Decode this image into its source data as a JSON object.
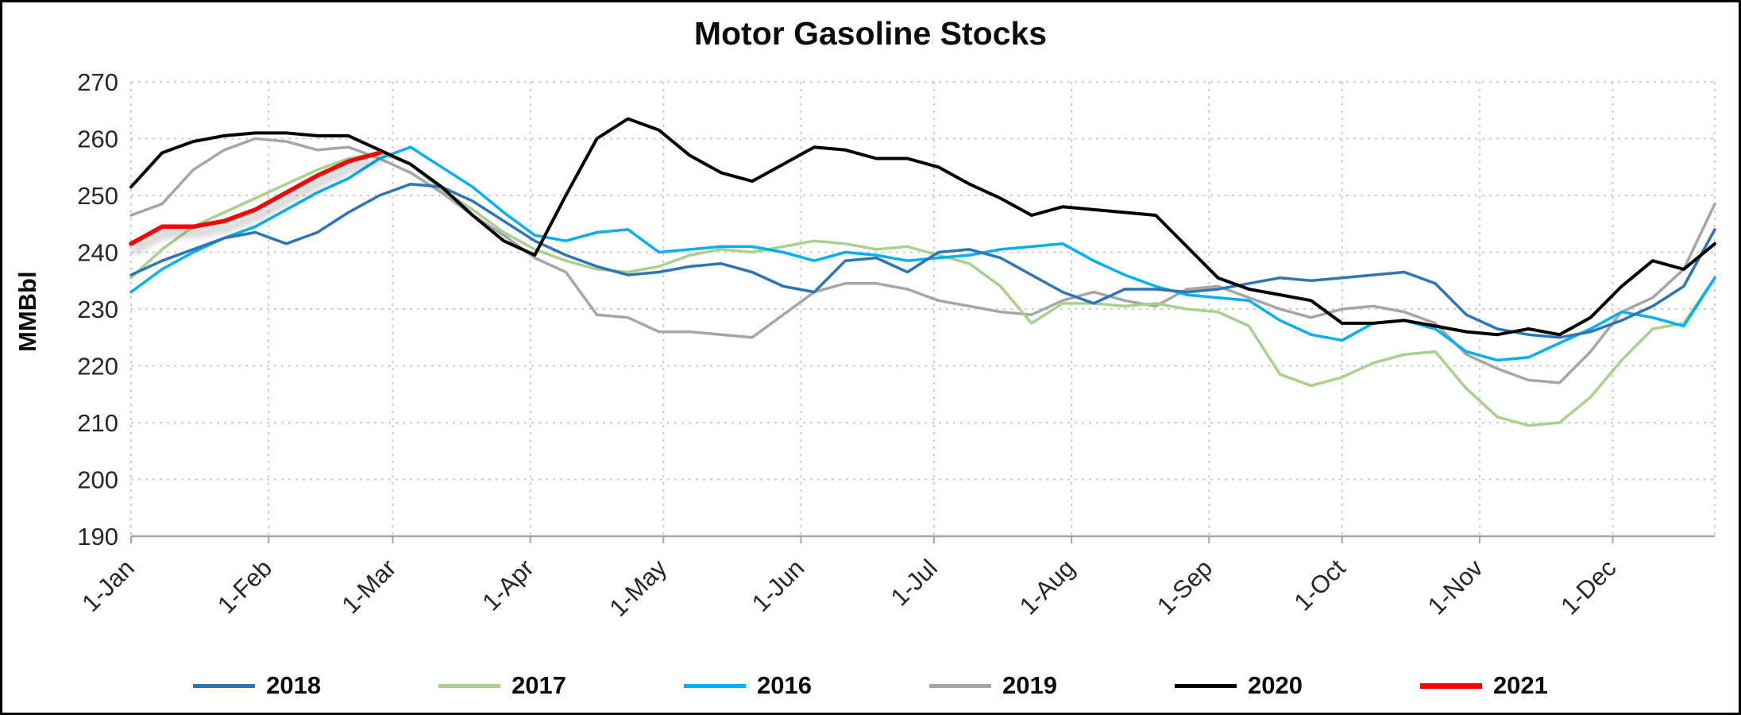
{
  "frame": {
    "background": "#FFFFFF",
    "border_color": "#000000"
  },
  "chart_data": {
    "type": "line",
    "title": "Motor Gasoline Stocks",
    "ylabel": "MMBbl",
    "xlabel": "",
    "ylim": [
      190,
      270
    ],
    "y_ticks": [
      190,
      200,
      210,
      220,
      230,
      240,
      250,
      260,
      270
    ],
    "x_tick_labels": [
      "1-Jan",
      "1-Feb",
      "1-Mar",
      "1-Apr",
      "1-May",
      "1-Jun",
      "1-Jul",
      "1-Aug",
      "1-Sep",
      "1-Oct",
      "1-Nov",
      "1-Dec"
    ],
    "x_tick_day_of_year": [
      1,
      32,
      60,
      91,
      121,
      152,
      182,
      213,
      244,
      274,
      305,
      335
    ],
    "x_unit": "weekly",
    "grid": true,
    "legend_position": "bottom",
    "axis_color": "#A6A6A6",
    "gridline_color": "#C6C6C6",
    "tick_label_color": "#262626",
    "draw_order": [
      "2019",
      "2017",
      "2016",
      "2018",
      "2020",
      "2021"
    ],
    "series": [
      {
        "name": "2018",
        "color": "#2E75B6",
        "width": 3.5,
        "values": [
          236,
          238.5,
          240.5,
          242.5,
          243.5,
          241.5,
          243.5,
          247,
          250,
          252,
          251.5,
          249,
          245.5,
          242,
          239.5,
          237.5,
          236,
          236.5,
          237.5,
          238,
          236.5,
          234,
          233,
          238.5,
          239,
          236.5,
          240,
          240.5,
          239,
          236,
          233,
          231,
          233.5,
          233.5,
          233,
          233.5,
          234.5,
          235.5,
          235,
          235.5,
          236,
          236.5,
          234.5,
          229,
          226.5,
          225.5,
          225,
          226,
          228,
          230.5,
          234,
          244
        ]
      },
      {
        "name": "2017",
        "color": "#A9D18E",
        "width": 3.5,
        "values": [
          235.5,
          240.5,
          244.5,
          247,
          249.5,
          252,
          254.5,
          256.5,
          257.5,
          255.5,
          251,
          247.5,
          243.5,
          240.5,
          238.5,
          237,
          236.5,
          237.5,
          239.5,
          240.5,
          240,
          241,
          242,
          241.5,
          240.5,
          241,
          239.5,
          238,
          234,
          227.5,
          231,
          231,
          230.5,
          231,
          230,
          229.5,
          227,
          218.5,
          216.5,
          218,
          220.5,
          222,
          222.5,
          216,
          211,
          209.5,
          210,
          214.5,
          221,
          226.5,
          227.5,
          235.5
        ]
      },
      {
        "name": "2016",
        "color": "#00B0F0",
        "width": 3.5,
        "values": [
          233,
          237,
          240,
          242.5,
          244.5,
          247.5,
          250.5,
          253,
          256.5,
          258.5,
          255,
          251.5,
          247,
          243,
          242,
          243.5,
          244,
          240,
          240.5,
          241,
          241,
          240,
          238.5,
          240,
          239.5,
          238.5,
          239,
          239.5,
          240.5,
          241,
          241.5,
          238.5,
          236,
          234,
          232.5,
          232,
          231.5,
          228,
          225.5,
          224.5,
          227.5,
          228,
          226.5,
          222.5,
          221,
          221.5,
          224,
          226.5,
          229.5,
          228.5,
          227,
          235.5
        ]
      },
      {
        "name": "2019",
        "color": "#A6A6A6",
        "width": 3.5,
        "values": [
          246.5,
          248.5,
          254.5,
          258,
          260,
          259.5,
          258,
          258.5,
          256.5,
          254,
          250.5,
          246.5,
          243,
          239,
          236.5,
          229,
          228.5,
          226,
          226,
          225.5,
          225,
          229,
          233,
          234.5,
          234.5,
          233.5,
          231.5,
          230.5,
          229.5,
          229,
          231.5,
          233,
          231.5,
          230.5,
          233.5,
          234,
          232,
          230,
          228.5,
          230,
          230.5,
          229.5,
          227.5,
          222,
          219.5,
          217.5,
          217,
          222.5,
          229.5,
          232,
          237,
          248.5
        ]
      },
      {
        "name": "2020",
        "color": "#000000",
        "width": 4,
        "values": [
          251.5,
          257.5,
          259.5,
          260.5,
          261,
          261,
          260.5,
          260.5,
          258,
          255.5,
          251.5,
          246.5,
          242,
          239.5,
          250,
          260,
          263.5,
          261.5,
          257,
          254,
          252.5,
          255.5,
          258.5,
          258,
          256.5,
          256.5,
          255,
          252,
          249.5,
          246.5,
          248,
          247.5,
          247,
          246.5,
          241,
          235.5,
          233.5,
          232.5,
          231.5,
          227.5,
          227.5,
          228,
          227,
          226,
          225.5,
          226.5,
          225.5,
          228.5,
          234,
          238.5,
          237,
          241.5
        ]
      },
      {
        "name": "2021",
        "color": "#FF0000",
        "width": 5.5,
        "shadow": true,
        "values": [
          241.5,
          244.5,
          244.5,
          245.5,
          247.5,
          250.5,
          253.5,
          256,
          257.5
        ]
      }
    ]
  }
}
